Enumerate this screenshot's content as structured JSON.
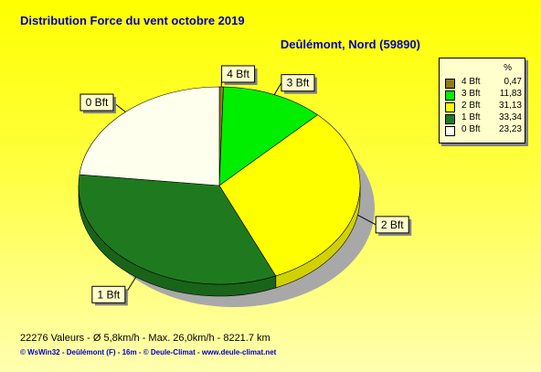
{
  "title": "Distribution Force du vent  octobre 2019",
  "subtitle": "Deûlémont, Nord (59890)",
  "legend_header": "%",
  "chart_data": {
    "type": "pie",
    "title": "Distribution Force du vent  octobre 2019",
    "subtitle": "Deûlémont, Nord (59890)",
    "legend_placement": "top-right",
    "slices": [
      {
        "label": "4 Bft",
        "value": 0.47,
        "value_text": "0,47",
        "color": "#8b7d1a"
      },
      {
        "label": "3 Bft",
        "value": 11.83,
        "value_text": "11,83",
        "color": "#00ee00"
      },
      {
        "label": "2 Bft",
        "value": 31.13,
        "value_text": "31,13",
        "color": "#ffff00"
      },
      {
        "label": "1 Bft",
        "value": 33.34,
        "value_text": "33,34",
        "color": "#1f7a1f"
      },
      {
        "label": "0 Bft",
        "value": 23.23,
        "value_text": "23,23",
        "color": "#ffffee"
      }
    ]
  },
  "footer": {
    "stats": "22276 Valeurs   -   Ø 5,8km/h  -  Max. 26,0km/h   -   8221.7 km",
    "credits": "© WsWin32  -  Deûlémont (F) - 16m  -  © Deule-Climat - www.deule-climat.net"
  }
}
